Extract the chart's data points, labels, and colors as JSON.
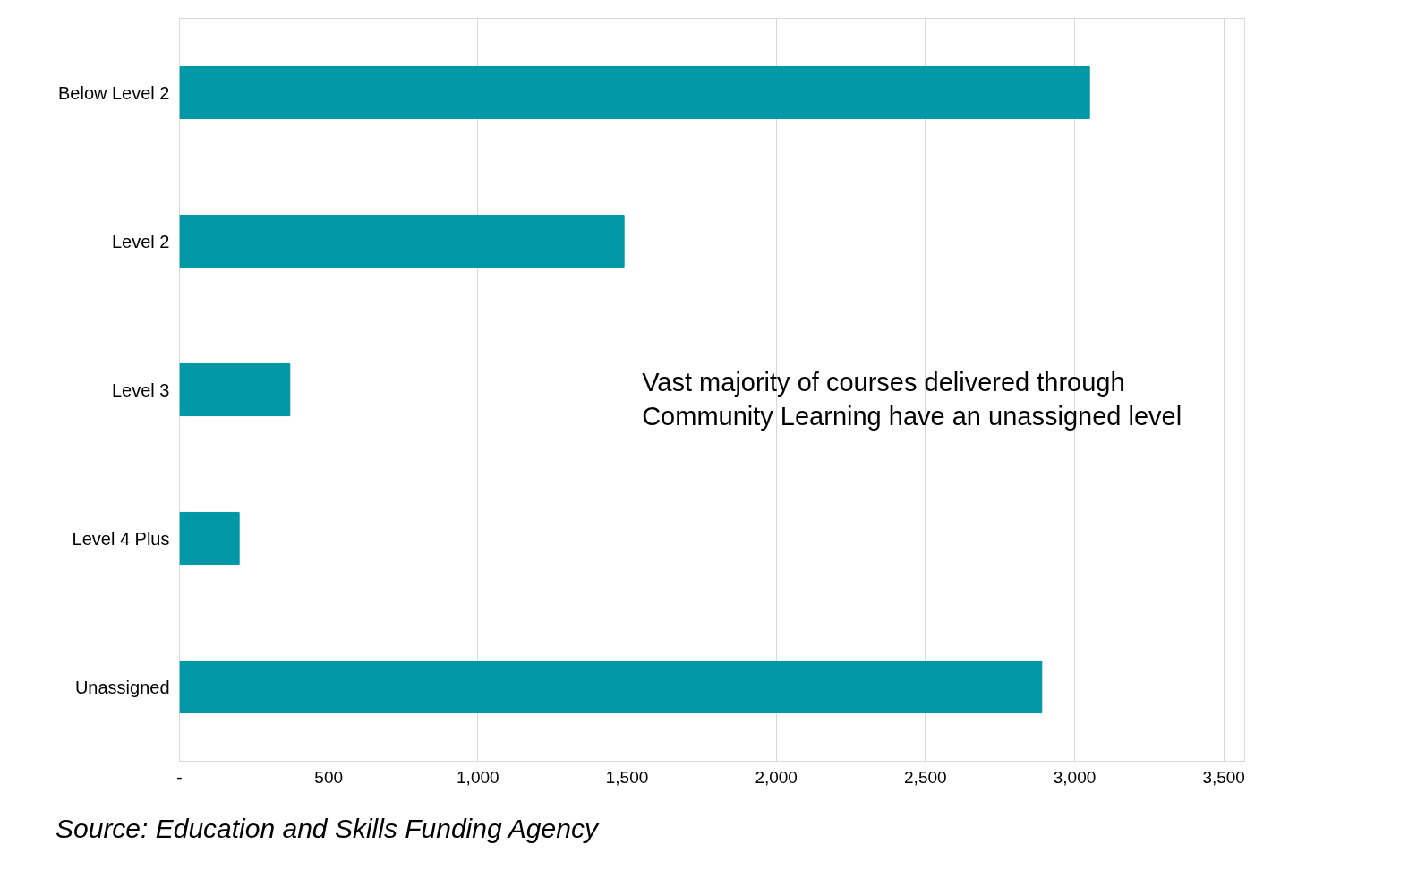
{
  "chart_data": {
    "type": "bar",
    "orientation": "horizontal",
    "categories": [
      "Below Level 2",
      "Level 2",
      "Level 3",
      "Level 4 Plus",
      "Unassigned"
    ],
    "values": [
      3050,
      1490,
      370,
      200,
      2890
    ],
    "color": "#0097a7",
    "xlim": [
      0,
      3500
    ],
    "xticks": [
      {
        "value": 0,
        "label": "-"
      },
      500,
      {
        "value": 1000,
        "label": "1,000"
      },
      {
        "value": 1500,
        "label": "1,500"
      },
      {
        "value": 2000,
        "label": "2,000"
      },
      {
        "value": 2500,
        "label": "2,500"
      },
      {
        "value": 3000,
        "label": "3,000"
      },
      {
        "value": 3500,
        "label": "3,500"
      }
    ],
    "grid": "x",
    "annotations": [
      "Vast majority of courses delivered through Community Learning have an unassigned level",
      "Source: Education and Skills Funding Agency"
    ]
  }
}
